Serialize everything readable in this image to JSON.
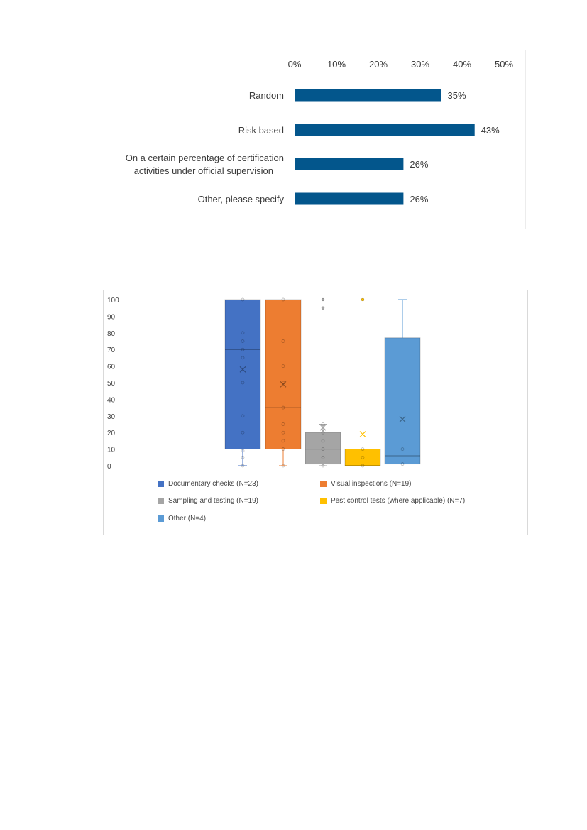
{
  "chart_data": [
    {
      "type": "bar",
      "orientation": "horizontal",
      "title": "",
      "categories": [
        "Random",
        "Risk based",
        "On a certain percentage of certification\nactivities under official supervision",
        "Other, please specify"
      ],
      "values": [
        35,
        43,
        26,
        26
      ],
      "value_labels": [
        "35%",
        "43%",
        "26%",
        "26%"
      ],
      "xlim": [
        0,
        50
      ],
      "xticks": [
        "0%",
        "10%",
        "20%",
        "30%",
        "40%",
        "50%"
      ],
      "axis_position": "top",
      "bar_color": "#03568c"
    },
    {
      "type": "box",
      "title": "",
      "ylim": [
        0,
        100
      ],
      "yticks": [
        "0",
        "10",
        "20",
        "30",
        "40",
        "50",
        "60",
        "70",
        "80",
        "90",
        "100"
      ],
      "series": [
        {
          "name": "Documentary checks (N=23)",
          "color": "#4472c4",
          "min": 0,
          "q1": 10,
          "median": 70,
          "q3": 100,
          "max": 100,
          "mean": 58,
          "points": [
            0,
            5,
            9,
            20,
            30,
            50,
            65,
            70,
            75,
            80,
            100
          ],
          "outliers": []
        },
        {
          "name": "Visual inspections (N=19)",
          "color": "#ed7d31",
          "min": 0,
          "q1": 10,
          "median": 35,
          "q3": 100,
          "max": 100,
          "mean": 49,
          "points": [
            0,
            10,
            15,
            20,
            25,
            35,
            50,
            60,
            75,
            100
          ],
          "outliers": []
        },
        {
          "name": "Sampling and testing (N=19)",
          "color": "#a5a5a5",
          "min": 0,
          "q1": 1,
          "median": 10,
          "q3": 20,
          "max": 25,
          "mean": 23,
          "points": [
            0,
            5,
            10,
            15,
            20,
            22,
            25
          ],
          "outliers": [
            95,
            100
          ]
        },
        {
          "name": "Pest control tests (where applicable) (N=7)",
          "color": "#ffc000",
          "min": 0,
          "q1": 0,
          "median": 0,
          "q3": 10,
          "max": 10,
          "mean": 19,
          "points": [
            0,
            5,
            10
          ],
          "outliers": [
            100
          ]
        },
        {
          "name": "Other (N=4)",
          "color": "#5b9bd5",
          "min": 1,
          "q1": 1,
          "median": 6,
          "q3": 77,
          "max": 100,
          "mean": 28,
          "points": [
            1,
            10
          ],
          "outliers": []
        }
      ]
    }
  ]
}
